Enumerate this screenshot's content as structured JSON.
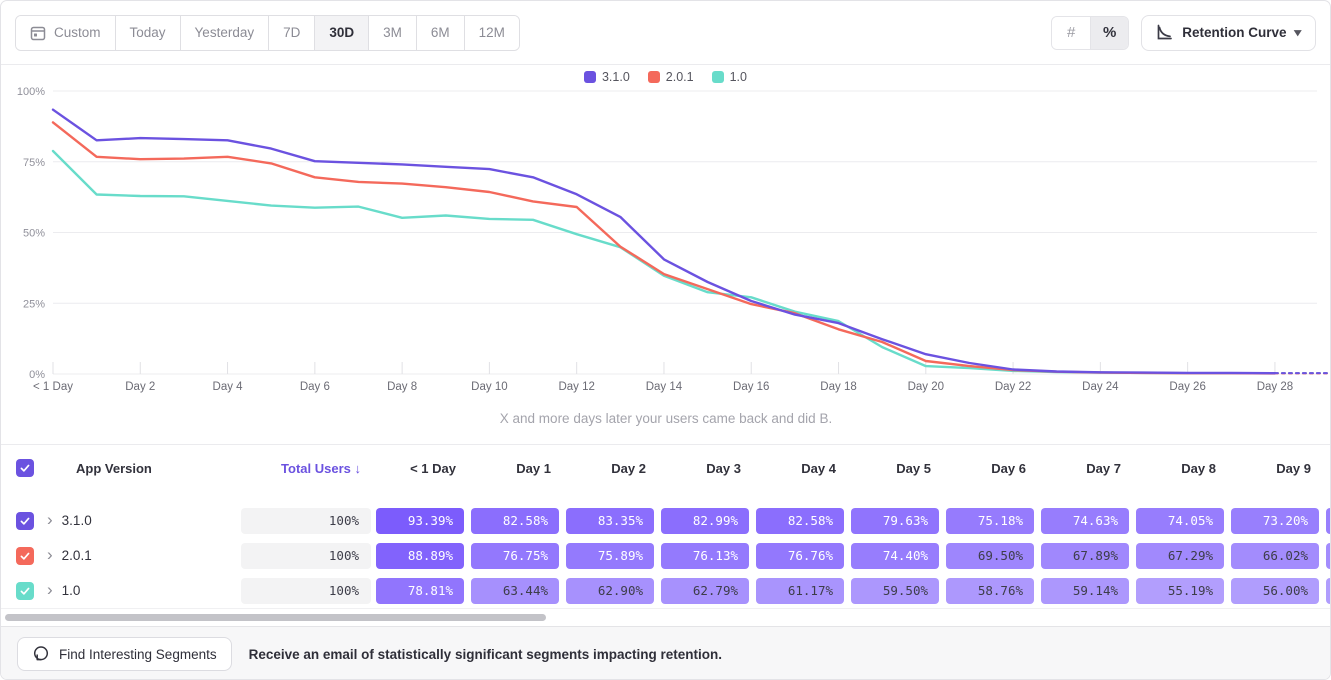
{
  "toolbar": {
    "date_range_buttons": [
      "Custom",
      "Today",
      "Yesterday",
      "7D",
      "30D",
      "3M",
      "6M",
      "12M"
    ],
    "selected_range": "30D",
    "format_toggle": {
      "options": [
        "#",
        "%"
      ],
      "selected": "%"
    },
    "chart_type_label": "Retention Curve"
  },
  "chart_data": {
    "type": "line",
    "title": "",
    "caption": "X and more days later your users came back and did B.",
    "ylim": [
      0,
      100
    ],
    "y_tick_labels": [
      "0%",
      "25%",
      "50%",
      "75%",
      "100%"
    ],
    "x_tick_days": [
      0,
      2,
      4,
      6,
      8,
      10,
      12,
      14,
      16,
      18,
      20,
      22,
      24,
      26,
      28
    ],
    "x_tick_labels": [
      "< 1 Day",
      "Day 2",
      "Day 4",
      "Day 6",
      "Day 8",
      "Day 10",
      "Day 12",
      "Day 14",
      "Day 16",
      "Day 18",
      "Day 20",
      "Day 22",
      "Day 24",
      "Day 26",
      "Day 28"
    ],
    "legend_position": "top-center",
    "grid": true,
    "series": [
      {
        "name": "3.1.0",
        "color": "#6b52e0",
        "values": [
          93.39,
          82.58,
          83.35,
          82.99,
          82.58,
          79.63,
          75.18,
          74.63,
          74.05,
          73.2,
          72.4,
          69.5,
          63.5,
          55.5,
          40.5,
          32.5,
          25.8,
          21.0,
          18.0,
          12.3,
          7.0,
          3.9,
          1.6,
          0.9,
          0.6,
          0.5,
          0.4,
          0.4,
          0.3,
          0.3
        ]
      },
      {
        "name": "2.0.1",
        "color": "#f4695b",
        "values": [
          88.89,
          76.75,
          75.89,
          76.13,
          76.76,
          74.4,
          69.5,
          67.89,
          67.29,
          66.02,
          64.3,
          61.0,
          59.0,
          45.0,
          35.3,
          30.0,
          24.7,
          21.5,
          15.8,
          11.3,
          4.6,
          2.8,
          1.4,
          0.8,
          0.5,
          0.4,
          0.3,
          0.3,
          0.2,
          0.2
        ]
      },
      {
        "name": "1.0",
        "color": "#68dcca",
        "values": [
          78.81,
          63.44,
          62.9,
          62.79,
          61.17,
          59.5,
          58.76,
          59.14,
          55.19,
          56.0,
          54.8,
          54.5,
          49.4,
          44.8,
          34.7,
          28.9,
          27.1,
          22.0,
          18.7,
          9.5,
          2.8,
          2.1,
          1.1,
          0.7,
          0.5,
          0.4,
          0.3,
          0.3,
          0.3,
          0.3
        ]
      }
    ]
  },
  "table": {
    "header": {
      "app_version": "App Version",
      "total_users": "Total Users",
      "sort_arrow": "↓",
      "day_columns": [
        "< 1 Day",
        "Day 1",
        "Day 2",
        "Day 3",
        "Day 4",
        "Day 5",
        "Day 6",
        "Day 7",
        "Day 8",
        "Day 9"
      ]
    },
    "rows": [
      {
        "name": "3.1.0",
        "color": "#6b52e0",
        "checked": true,
        "total_users": "100%",
        "values": [
          "93.39%",
          "82.58%",
          "83.35%",
          "82.99%",
          "82.58%",
          "79.63%",
          "75.18%",
          "74.63%",
          "74.05%",
          "73.20%"
        ]
      },
      {
        "name": "2.0.1",
        "color": "#f4695b",
        "checked": true,
        "total_users": "100%",
        "values": [
          "88.89%",
          "76.75%",
          "75.89%",
          "76.13%",
          "76.76%",
          "74.40%",
          "69.50%",
          "67.89%",
          "67.29%",
          "66.02%"
        ]
      },
      {
        "name": "1.0",
        "color": "#68dcca",
        "checked": true,
        "total_users": "100%",
        "values": [
          "78.81%",
          "63.44%",
          "62.90%",
          "62.79%",
          "61.17%",
          "59.50%",
          "58.76%",
          "59.14%",
          "55.19%",
          "56.00%"
        ]
      }
    ],
    "cell_base_rgb": "115,80,252"
  },
  "footer": {
    "button_label": "Find Interesting Segments",
    "message": "Receive an email of statistically significant segments impacting retention."
  }
}
